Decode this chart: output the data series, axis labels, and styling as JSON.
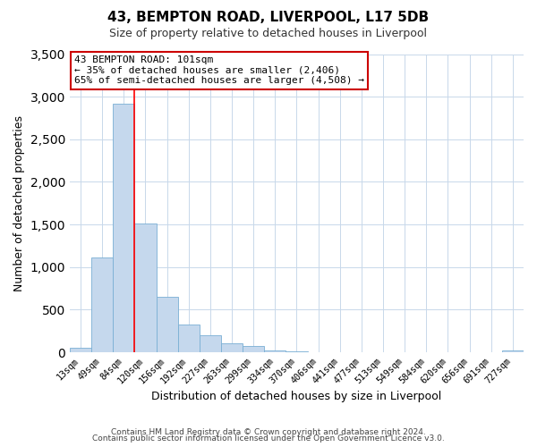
{
  "title": "43, BEMPTON ROAD, LIVERPOOL, L17 5DB",
  "subtitle": "Size of property relative to detached houses in Liverpool",
  "xlabel": "Distribution of detached houses by size in Liverpool",
  "ylabel": "Number of detached properties",
  "bar_labels": [
    "13sqm",
    "49sqm",
    "84sqm",
    "120sqm",
    "156sqm",
    "192sqm",
    "227sqm",
    "263sqm",
    "299sqm",
    "334sqm",
    "370sqm",
    "406sqm",
    "441sqm",
    "477sqm",
    "513sqm",
    "549sqm",
    "584sqm",
    "620sqm",
    "656sqm",
    "691sqm",
    "727sqm"
  ],
  "bar_values": [
    50,
    1110,
    2920,
    1510,
    650,
    330,
    200,
    110,
    70,
    25,
    10,
    5,
    5,
    0,
    0,
    0,
    0,
    0,
    0,
    0,
    25
  ],
  "bar_color": "#c5d8ed",
  "bar_edge_color": "#7aafd4",
  "ylim": [
    0,
    3500
  ],
  "yticks": [
    0,
    500,
    1000,
    1500,
    2000,
    2500,
    3000,
    3500
  ],
  "red_line_after_bin": 2,
  "annotation_title": "43 BEMPTON ROAD: 101sqm",
  "annotation_line1": "← 35% of detached houses are smaller (2,406)",
  "annotation_line2": "65% of semi-detached houses are larger (4,508) →",
  "annotation_box_color": "#ffffff",
  "annotation_box_edge_color": "#cc0000",
  "footer_line1": "Contains HM Land Registry data © Crown copyright and database right 2024.",
  "footer_line2": "Contains public sector information licensed under the Open Government Licence v3.0.",
  "background_color": "#ffffff",
  "grid_color": "#c8d8ea"
}
